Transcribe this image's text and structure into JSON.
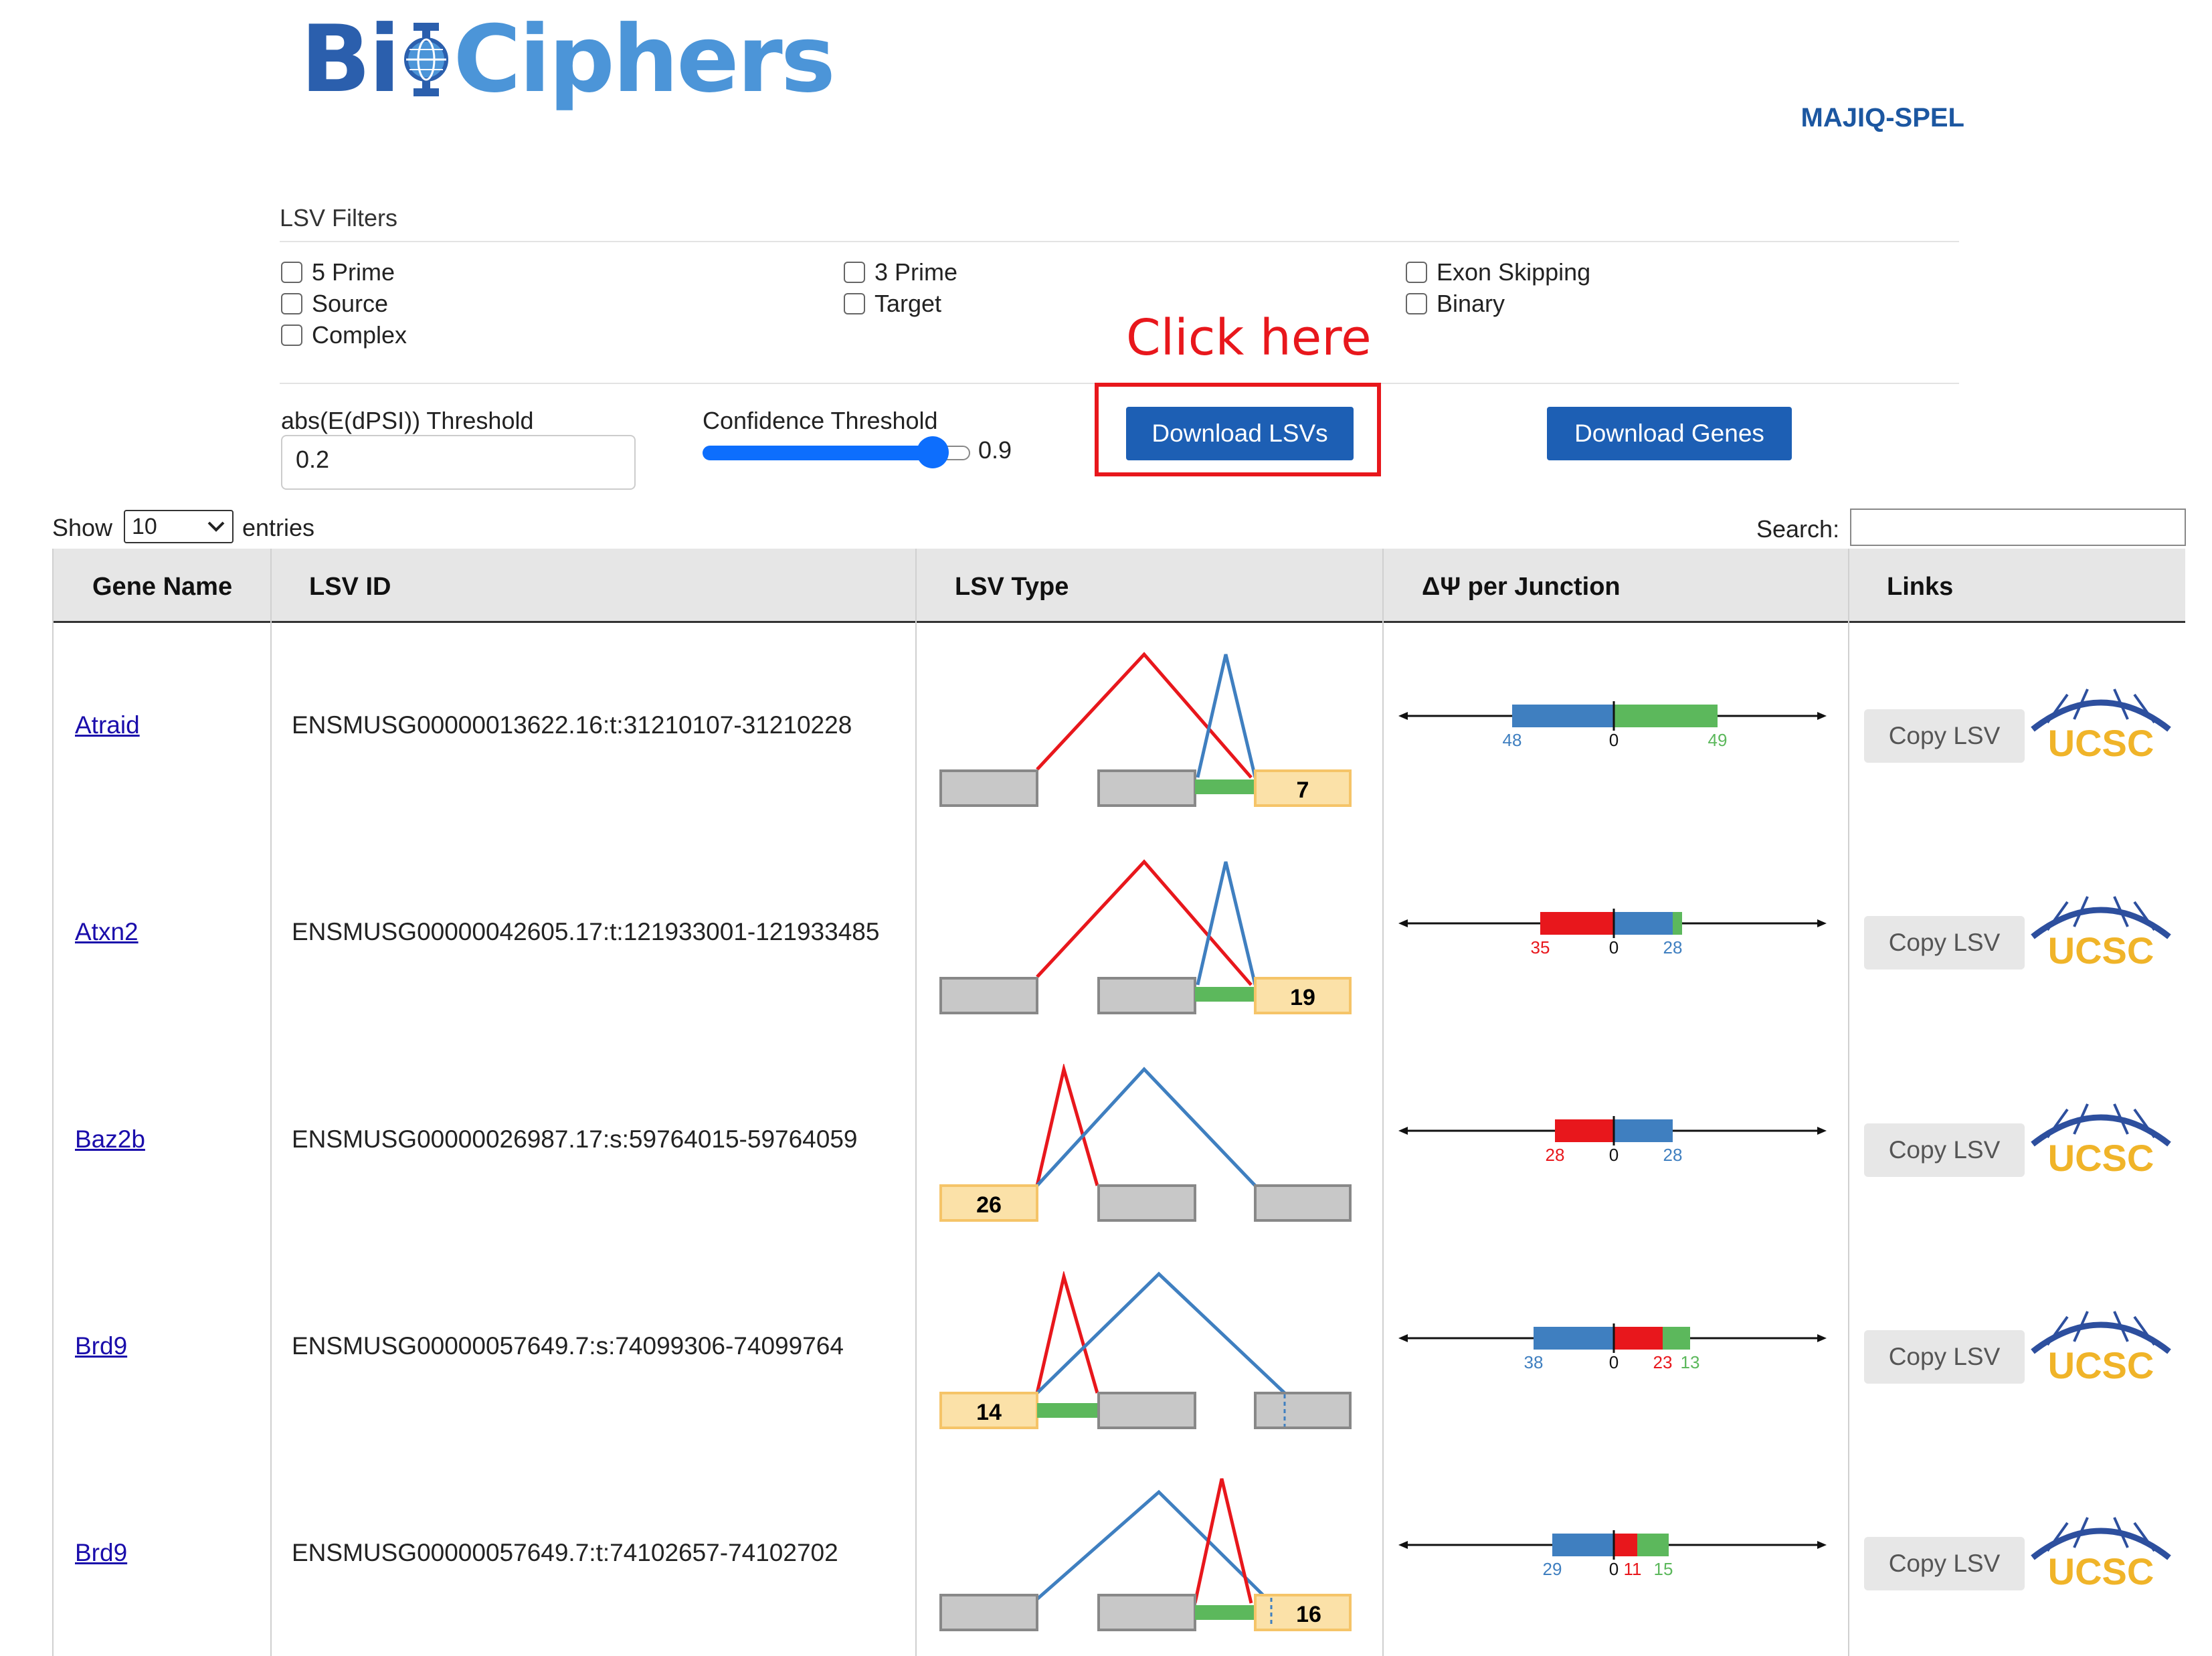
{
  "header": {
    "logo_part1": "Bi",
    "logo_part2": "Ciphers",
    "app_name": "MAJIQ-SPEL"
  },
  "filters": {
    "title": "LSV Filters",
    "checkboxes": [
      {
        "label": "5 Prime",
        "checked": false
      },
      {
        "label": "Source",
        "checked": false
      },
      {
        "label": "Complex",
        "checked": false
      },
      {
        "label": "3 Prime",
        "checked": false
      },
      {
        "label": "Target",
        "checked": false
      },
      {
        "label": "Exon Skipping",
        "checked": false
      },
      {
        "label": "Binary",
        "checked": false
      }
    ],
    "dpsi_label": "abs(E(dPSI)) Threshold",
    "dpsi_value": "0.2",
    "confidence_label": "Confidence Threshold",
    "confidence_value": "0.9",
    "download_lsvs": "Download LSVs",
    "download_genes": "Download Genes",
    "annotation": "Click here"
  },
  "table_controls": {
    "show_label": "Show",
    "entries_value": "10",
    "entries_label": "entries",
    "search_label": "Search:"
  },
  "table": {
    "headers": [
      "Gene Name",
      "LSV ID",
      "LSV Type",
      "ΔΨ per Junction",
      "Links"
    ],
    "copy_label": "Copy LSV",
    "ucsc_label": "UCSC",
    "rows": [
      {
        "gene": "Atraid",
        "lsv_id": "ENSMUSG00000013622.16:t:31210107-31210228",
        "type_num": "7",
        "dpsi": [
          "48",
          "0",
          "49"
        ]
      },
      {
        "gene": "Atxn2",
        "lsv_id": "ENSMUSG00000042605.17:t:121933001-121933485",
        "type_num": "19",
        "dpsi": [
          "35",
          "0",
          "28"
        ]
      },
      {
        "gene": "Baz2b",
        "lsv_id": "ENSMUSG00000026987.17:s:59764015-59764059",
        "type_num": "26",
        "dpsi": [
          "28",
          "0",
          "28"
        ]
      },
      {
        "gene": "Brd9",
        "lsv_id": "ENSMUSG00000057649.7:s:74099306-74099764",
        "type_num": "14",
        "dpsi": [
          "38",
          "0",
          "23",
          "13"
        ]
      },
      {
        "gene": "Brd9",
        "lsv_id": "ENSMUSG00000057649.7:t:74102657-74102702",
        "type_num": "16",
        "dpsi": [
          "29",
          "0",
          "11",
          "15"
        ]
      }
    ]
  },
  "colors": {
    "blue": "#3f7fc0",
    "red": "#e8171c",
    "green": "#5cb85c",
    "button": "#1d5fb4",
    "link": "#1a0dab"
  }
}
